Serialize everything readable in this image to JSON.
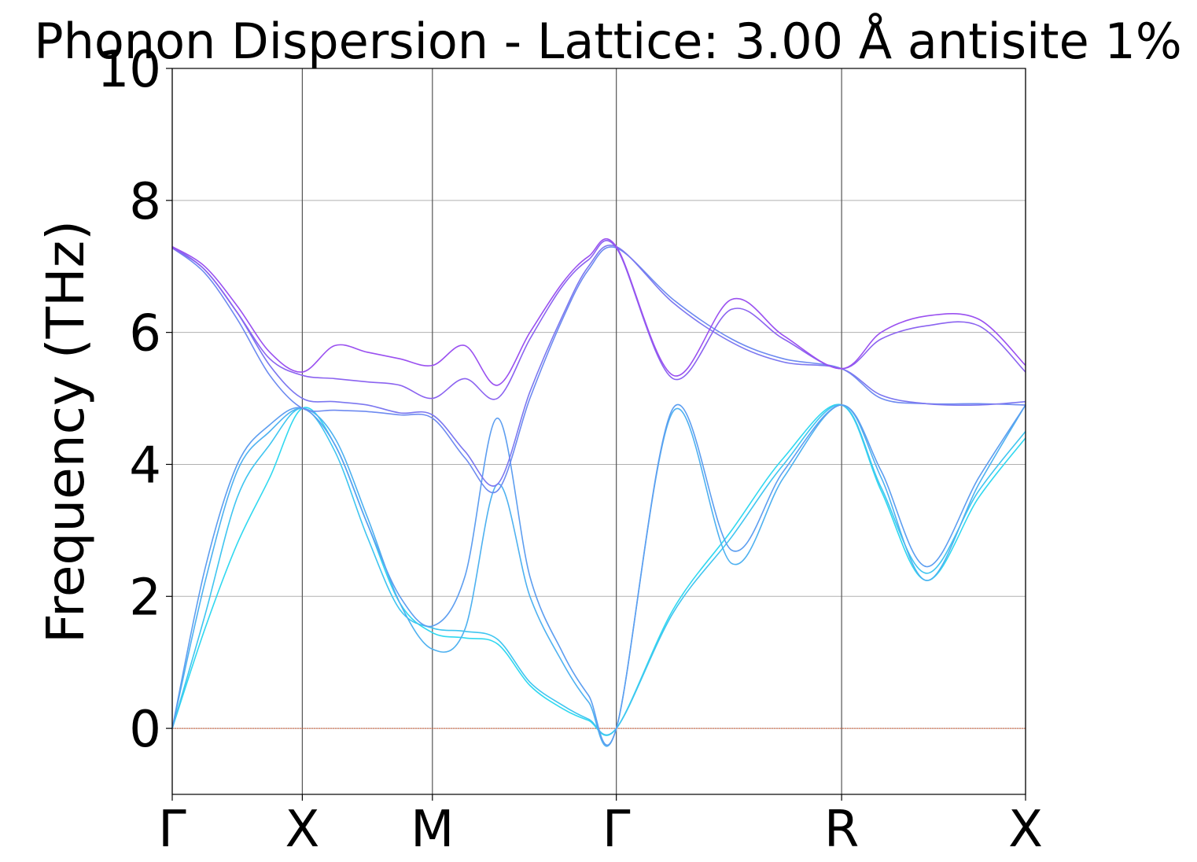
{
  "chart_data": {
    "type": "line",
    "title": "Phonon Dispersion - Lattice: 3.00 Å antisite 1%",
    "xlabel": "",
    "ylabel": "Frequency (THz)",
    "ylim": [
      -1,
      10
    ],
    "y_ticks": [
      0,
      2,
      4,
      6,
      8,
      10
    ],
    "x_ticks": [
      {
        "label": "Γ",
        "pos": 0.0
      },
      {
        "label": "X",
        "pos": 1.0
      },
      {
        "label": "M",
        "pos": 2.0
      },
      {
        "label": "Γ",
        "pos": 3.414
      },
      {
        "label": "R",
        "pos": 5.146
      },
      {
        "label": "X",
        "pos": 6.56
      }
    ],
    "xlim": [
      0,
      6.56
    ],
    "grid": true,
    "zero_line_color": "#d4603a",
    "series_color_start": "#30d8f0",
    "series_color_end": "#9a50f0",
    "series": [
      {
        "x": [
          0,
          0.25,
          0.5,
          0.75,
          1,
          1.25,
          1.5,
          1.75,
          2,
          2.25,
          2.5,
          2.75,
          3,
          3.2,
          3.414,
          3.85,
          4.3,
          4.7,
          5.146,
          5.45,
          5.8,
          6.2,
          6.56
        ],
        "values": [
          0,
          1.5,
          2.8,
          3.8,
          4.85,
          4.3,
          3.1,
          1.9,
          1.45,
          1.37,
          1.28,
          0.65,
          0.3,
          0.12,
          0,
          1.8,
          3.0,
          4.1,
          4.9,
          3.6,
          2.24,
          3.5,
          4.4
        ]
      },
      {
        "x": [
          0,
          0.25,
          0.5,
          0.75,
          1,
          1.25,
          1.5,
          1.75,
          2,
          2.25,
          2.5,
          2.75,
          3,
          3.2,
          3.414,
          3.85,
          4.3,
          4.7,
          5.146,
          5.45,
          5.8,
          6.2,
          6.56
        ],
        "values": [
          0,
          1.7,
          3.5,
          4.3,
          4.85,
          4.2,
          2.9,
          1.8,
          1.52,
          1.47,
          1.35,
          0.7,
          0.35,
          0.14,
          0,
          1.75,
          2.9,
          4.0,
          4.9,
          3.65,
          2.35,
          3.6,
          4.5
        ]
      },
      {
        "x": [
          0,
          0.25,
          0.5,
          0.75,
          1,
          1.25,
          1.5,
          1.75,
          2,
          2.25,
          2.5,
          2.75,
          3,
          3.2,
          3.414,
          3.85,
          4.3,
          4.7,
          5.146,
          5.45,
          5.8,
          6.2,
          6.56
        ],
        "values": [
          0,
          2.2,
          3.9,
          4.5,
          4.85,
          4.4,
          3.2,
          1.9,
          1.2,
          1.5,
          3.7,
          2.0,
          1.0,
          0.4,
          0,
          4.8,
          2.5,
          3.8,
          4.9,
          3.8,
          2.24,
          3.7,
          4.9
        ]
      },
      {
        "x": [
          0,
          0.25,
          0.5,
          0.75,
          1,
          1.25,
          1.5,
          1.75,
          2,
          2.25,
          2.5,
          2.75,
          3,
          3.2,
          3.414,
          3.85,
          4.3,
          4.7,
          5.146,
          5.45,
          5.8,
          6.2,
          6.56
        ],
        "values": [
          0,
          2.4,
          4.0,
          4.6,
          4.85,
          4.3,
          3.1,
          2.0,
          1.55,
          2.3,
          4.7,
          2.3,
          1.15,
          0.5,
          0,
          4.85,
          2.7,
          3.9,
          4.9,
          3.9,
          2.45,
          3.8,
          4.9
        ]
      },
      {
        "x": [
          0,
          0.25,
          0.5,
          0.75,
          1,
          1.25,
          1.5,
          1.75,
          2,
          2.25,
          2.5,
          2.75,
          3,
          3.2,
          3.414,
          3.85,
          4.3,
          4.7,
          5.146,
          5.45,
          5.8,
          6.2,
          6.56
        ],
        "values": [
          7.28,
          6.9,
          6.2,
          5.35,
          4.85,
          4.82,
          4.8,
          4.75,
          4.7,
          4.1,
          3.6,
          5.0,
          6.2,
          6.95,
          7.28,
          6.5,
          5.9,
          5.6,
          5.45,
          5.0,
          4.92,
          4.92,
          4.9
        ]
      },
      {
        "x": [
          0,
          0.25,
          0.5,
          0.75,
          1,
          1.25,
          1.5,
          1.75,
          2,
          2.25,
          2.5,
          2.75,
          3,
          3.2,
          3.414,
          3.85,
          4.3,
          4.7,
          5.146,
          5.45,
          5.8,
          6.2,
          6.56
        ],
        "values": [
          7.3,
          6.95,
          6.3,
          5.5,
          5.0,
          4.95,
          4.9,
          4.78,
          4.75,
          4.2,
          3.7,
          5.1,
          6.25,
          7.0,
          7.3,
          6.45,
          5.85,
          5.55,
          5.45,
          5.05,
          4.92,
          4.9,
          4.95
        ]
      },
      {
        "x": [
          0,
          0.25,
          0.5,
          0.75,
          1,
          1.25,
          1.5,
          1.75,
          2,
          2.25,
          2.5,
          2.75,
          3,
          3.2,
          3.414,
          3.85,
          4.3,
          4.7,
          5.146,
          5.45,
          5.8,
          6.2,
          6.56
        ],
        "values": [
          7.28,
          6.95,
          6.3,
          5.6,
          5.35,
          5.3,
          5.25,
          5.2,
          5.0,
          5.3,
          5.0,
          5.9,
          6.7,
          7.1,
          7.28,
          5.3,
          6.35,
          5.9,
          5.45,
          5.9,
          6.1,
          6.1,
          5.4
        ]
      },
      {
        "x": [
          0,
          0.25,
          0.5,
          0.75,
          1,
          1.25,
          1.5,
          1.75,
          2,
          2.25,
          2.5,
          2.75,
          3,
          3.2,
          3.414,
          3.85,
          4.3,
          4.7,
          5.146,
          5.45,
          5.8,
          6.2,
          6.56
        ],
        "values": [
          7.3,
          7.0,
          6.4,
          5.7,
          5.4,
          5.8,
          5.7,
          5.6,
          5.5,
          5.8,
          5.2,
          6.0,
          6.75,
          7.15,
          7.3,
          5.35,
          6.5,
          5.95,
          5.45,
          6.0,
          6.25,
          6.2,
          5.5
        ]
      }
    ]
  }
}
